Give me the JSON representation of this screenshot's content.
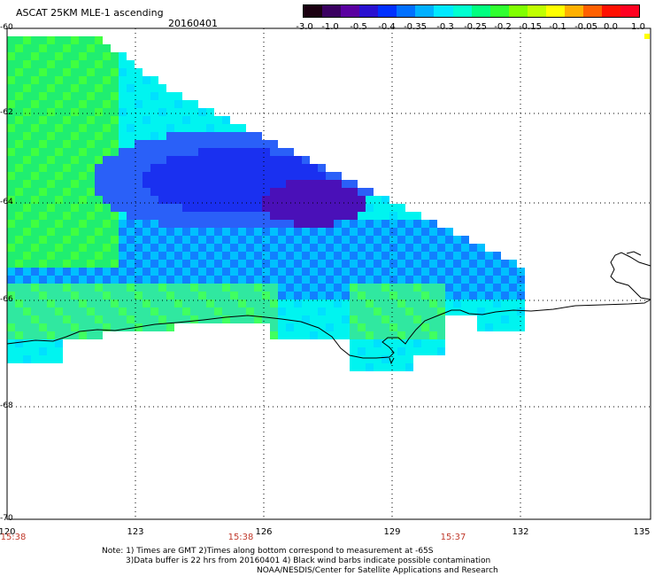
{
  "header": {
    "title": "ASCAT 25KM MLE-1 ascending",
    "date": "20160401"
  },
  "colorbar": {
    "labels": [
      "-3.0",
      "-1.0",
      "-0.5",
      "-0.4",
      "-0.35",
      "-0.3",
      "-0.25",
      "-0.2",
      "-0.15",
      "-0.1",
      "-0.05",
      "0.0",
      "1.0"
    ],
    "colors": [
      "#1a0010",
      "#3a0060",
      "#5a00a0",
      "#2a10d0",
      "#0030ff",
      "#0070ff",
      "#00b0ff",
      "#00e8ff",
      "#00ffd0",
      "#00ff80",
      "#30ff30",
      "#80ff00",
      "#c0ff00",
      "#ffff00",
      "#ffb000",
      "#ff6000",
      "#ff1000",
      "#ff0020"
    ]
  },
  "axes": {
    "lat_labels": [
      "-60",
      "-62",
      "-64",
      "-66",
      "-68",
      "-70"
    ],
    "lon_labels": [
      "120",
      "123",
      "126",
      "129",
      "132",
      "135"
    ],
    "time_labels": [
      "15:38",
      "15:38",
      "15:37"
    ]
  },
  "notes": {
    "line1": "Note: 1) Times are GMT 2)Times along bottom correspond to measurement at -65S",
    "line2": "3)Data buffer is 22 hrs from 20160401 4) Black wind barbs indicate possible contamination",
    "line3": "NOAA/NESDIS/Center for Satellite Applications and Research"
  }
}
